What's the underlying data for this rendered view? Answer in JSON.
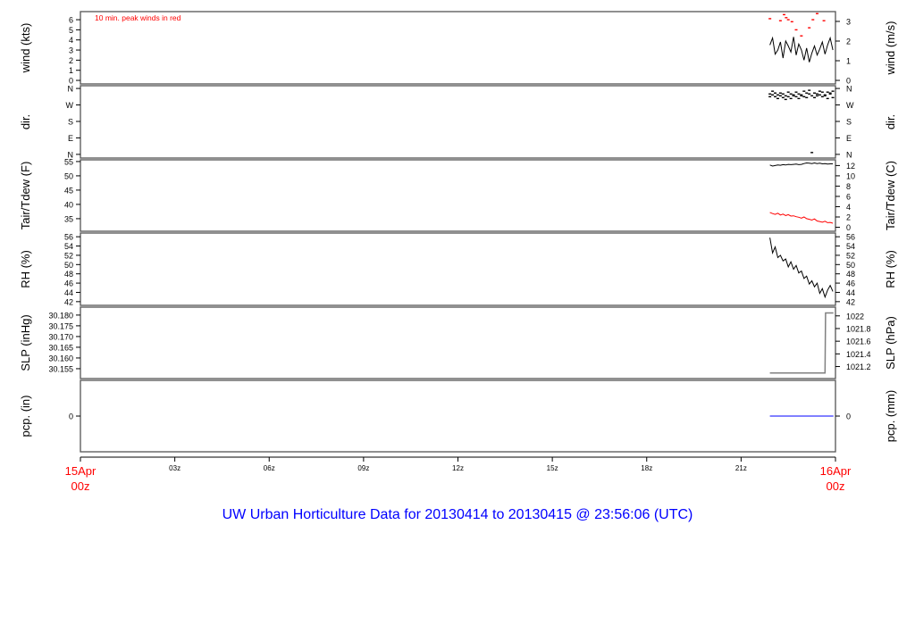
{
  "title": "UW Urban Horticulture Data for 20130414  to  20130415 @ 23:56:06  (UTC)",
  "colors": {
    "title": "#0000ff",
    "date_labels": "#ff0000",
    "peak": "#ff0000",
    "tdew": "#ff0000",
    "pcp": "#0000ff",
    "main": "#000000",
    "slp": "#808080"
  },
  "chart_data": [
    {
      "id": "wind",
      "type": "line",
      "ylabel": "wind (kts)",
      "ylabel_right": "wind (m/s)",
      "annotation": "10 min. peak winds in red",
      "ylim": [
        -0.35,
        6.8
      ],
      "yticks": [
        0,
        1,
        2,
        3,
        4,
        5,
        6
      ],
      "yticks_right": [
        0,
        1,
        2,
        3
      ],
      "x": [
        "21:55",
        "22:00",
        "22:05",
        "22:10",
        "22:15",
        "22:20",
        "22:25",
        "22:30",
        "22:35",
        "22:40",
        "22:45",
        "22:50",
        "22:55",
        "23:00",
        "23:05",
        "23:10",
        "23:15",
        "23:20",
        "23:25",
        "23:30",
        "23:35",
        "23:40",
        "23:45",
        "23:50",
        "23:55"
      ],
      "series": [
        {
          "values": [
            3.5,
            4.2,
            2.6,
            3.0,
            3.8,
            2.2,
            3.9,
            3.4,
            2.8,
            4.3,
            2.5,
            3.6,
            3.0,
            2.0,
            3.2,
            1.8,
            2.7,
            3.4,
            2.5,
            3.1,
            3.8,
            2.6,
            3.5,
            4.2,
            3.0
          ]
        },
        {
          "points": true,
          "x": [
            "21:55",
            "22:15",
            "22:22",
            "22:26",
            "22:30",
            "22:37",
            "22:45",
            "22:55",
            "23:10",
            "23:17",
            "23:25",
            "23:38"
          ],
          "values": [
            6.1,
            5.9,
            6.5,
            6.2,
            6.0,
            5.8,
            5.0,
            4.4,
            5.2,
            6.0,
            6.6,
            5.9
          ]
        }
      ]
    },
    {
      "id": "dir",
      "type": "scatter",
      "ylabel": "dir.",
      "ylabel_right": "dir.",
      "ylim": [
        -20,
        375
      ],
      "yticks": [
        0,
        90,
        180,
        270,
        360
      ],
      "ytick_labels": [
        "N",
        "E",
        "S",
        "W",
        "N"
      ],
      "x": [
        "21:55",
        "22:00",
        "22:05",
        "22:10",
        "22:15",
        "22:20",
        "22:25",
        "22:30",
        "22:35",
        "22:40",
        "22:45",
        "22:50",
        "22:55",
        "23:00",
        "23:05",
        "23:10",
        "23:15",
        "23:20",
        "23:25",
        "23:30",
        "23:35",
        "23:40",
        "23:45",
        "23:50",
        "23:55"
      ],
      "series": [
        {
          "values": [
            330,
            345,
            315,
            325,
            335,
            310,
            320,
            340,
            305,
            325,
            315,
            330,
            320,
            345,
            310,
            330,
            10,
            335,
            320,
            345,
            315,
            325,
            340,
            330,
            310
          ]
        },
        {
          "values": [
            315,
            325,
            335,
            305,
            320,
            330,
            300,
            315,
            330,
            320,
            340,
            305,
            325,
            315,
            335,
            350,
            320,
            310,
            330,
            325,
            340,
            320,
            305,
            335,
            345
          ]
        }
      ]
    },
    {
      "id": "temp",
      "type": "line",
      "ylabel": "Tair/Tdew (F)",
      "ylabel_right": "Tair/Tdew (C)",
      "ylim": [
        30.6,
        55.6
      ],
      "yticks": [
        35,
        40,
        45,
        50,
        55
      ],
      "yticks_right": [
        0,
        2,
        4,
        6,
        8,
        10,
        12
      ],
      "x": [
        "21:55",
        "22:00",
        "22:05",
        "22:10",
        "22:15",
        "22:20",
        "22:25",
        "22:30",
        "22:35",
        "22:40",
        "22:45",
        "22:50",
        "22:55",
        "23:00",
        "23:05",
        "23:10",
        "23:15",
        "23:20",
        "23:25",
        "23:30",
        "23:35",
        "23:40",
        "23:45",
        "23:50",
        "23:55"
      ],
      "series": [
        {
          "name": "Tair",
          "values": [
            53.8,
            53.4,
            53.6,
            53.8,
            53.7,
            53.9,
            53.8,
            54.0,
            53.9,
            54.0,
            54.1,
            53.9,
            54.0,
            54.3,
            54.5,
            54.4,
            54.3,
            54.5,
            54.3,
            54.4,
            54.2,
            54.3,
            54.1,
            54.2,
            54.2
          ]
        },
        {
          "name": "Tdew",
          "values": [
            37.2,
            36.8,
            36.5,
            36.9,
            36.3,
            36.6,
            36.1,
            36.4,
            35.9,
            36.0,
            35.7,
            35.5,
            35.2,
            35.6,
            35.0,
            34.8,
            34.5,
            34.9,
            34.2,
            34.0,
            33.8,
            34.1,
            33.6,
            33.7,
            33.4
          ]
        }
      ]
    },
    {
      "id": "rh",
      "type": "line",
      "ylabel": "RH (%)",
      "ylabel_right": "RH (%)",
      "ylim": [
        41.2,
        56.8
      ],
      "yticks": [
        42,
        44,
        46,
        48,
        50,
        52,
        54,
        56
      ],
      "yticks_right": [
        42,
        44,
        46,
        48,
        50,
        52,
        54,
        56
      ],
      "x": [
        "21:55",
        "22:00",
        "22:05",
        "22:10",
        "22:15",
        "22:20",
        "22:25",
        "22:30",
        "22:35",
        "22:40",
        "22:45",
        "22:50",
        "22:55",
        "23:00",
        "23:05",
        "23:10",
        "23:15",
        "23:20",
        "23:25",
        "23:30",
        "23:35",
        "23:40",
        "23:45",
        "23:50",
        "23:55"
      ],
      "series": [
        {
          "values": [
            55.8,
            52.5,
            53.8,
            51.5,
            52.0,
            50.8,
            51.2,
            49.5,
            50.6,
            49.0,
            49.8,
            48.2,
            48.6,
            47.0,
            47.5,
            45.8,
            46.5,
            45.2,
            46.0,
            43.8,
            44.8,
            43.0,
            44.5,
            45.5,
            44.2
          ]
        }
      ]
    },
    {
      "id": "slp",
      "type": "line",
      "ylabel": "SLP (inHg)",
      "ylabel_right": "SLP (hPa)",
      "ylim": [
        30.1504,
        30.1837
      ],
      "yticks": [
        30.155,
        30.16,
        30.165,
        30.17,
        30.175,
        30.18
      ],
      "ytick_labels": [
        "30.155",
        "30.160",
        "30.165",
        "30.170",
        "30.175",
        "30.180"
      ],
      "yticks_right": [
        1021.2,
        1021.4,
        1021.6,
        1021.8,
        1022
      ],
      "x": [
        "21:55",
        "23:40",
        "23:41",
        "23:56"
      ],
      "series": [
        {
          "values": [
            30.153,
            30.153,
            30.181,
            30.181
          ]
        }
      ]
    },
    {
      "id": "pcp",
      "type": "line",
      "ylabel": "pcp. (in)",
      "ylabel_right": "pcp. (mm)",
      "ylim": [
        -1,
        1
      ],
      "yticks": [
        0
      ],
      "yticks_right": [
        0
      ],
      "x": [
        "21:55",
        "23:56"
      ],
      "series": [
        {
          "values": [
            0,
            0
          ]
        }
      ]
    }
  ],
  "xaxis": {
    "range_hours": [
      0,
      24
    ],
    "ticks": [
      {
        "hour": 0,
        "label": "15Apr",
        "label2": "00z",
        "red": true
      },
      {
        "hour": 3,
        "label": "03z"
      },
      {
        "hour": 6,
        "label": "06z"
      },
      {
        "hour": 9,
        "label": "09z"
      },
      {
        "hour": 12,
        "label": "12z"
      },
      {
        "hour": 15,
        "label": "15z"
      },
      {
        "hour": 18,
        "label": "18z"
      },
      {
        "hour": 21,
        "label": "21z"
      },
      {
        "hour": 24,
        "label": "16Apr",
        "label2": "00z",
        "red": true
      }
    ]
  }
}
